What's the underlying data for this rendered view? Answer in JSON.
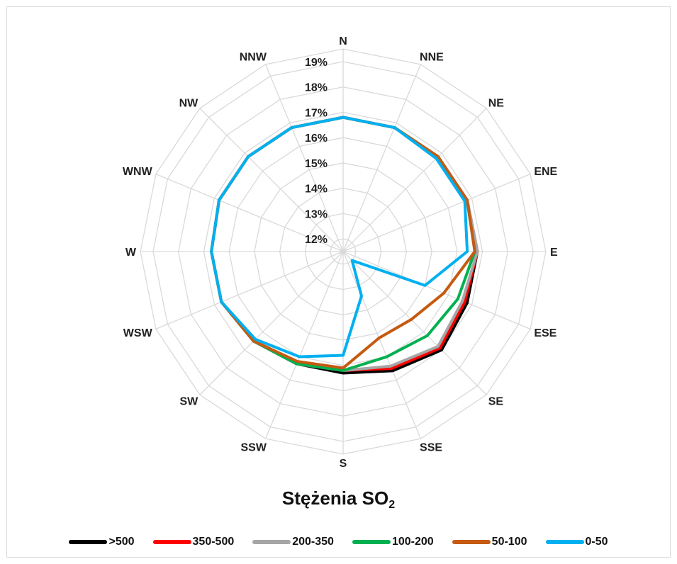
{
  "chart_data": {
    "type": "radar",
    "title": "Stężenia SO",
    "title_subscript": "2",
    "directions": [
      "N",
      "NNE",
      "NE",
      "ENE",
      "E",
      "ESE",
      "SE",
      "SSE",
      "S",
      "SSW",
      "SW",
      "WSW",
      "W",
      "WNW",
      "NW",
      "NNW"
    ],
    "radial_ticks": [
      "12%",
      "13%",
      "14%",
      "15%",
      "16%",
      "17%",
      "18%",
      "19%"
    ],
    "rlim": [
      0.115,
      0.19
    ],
    "grid": true,
    "legend_position": "bottom",
    "series": [
      {
        "name": ">500",
        "color": "#000000",
        "values": [
          0.168,
          0.168,
          0.168,
          0.168,
          0.168,
          0.168,
          0.17,
          0.166,
          0.163,
          0.163,
          0.165,
          0.167,
          0.167,
          0.168,
          0.168,
          0.168
        ]
      },
      {
        "name": "350-500",
        "color": "#ff0000",
        "values": [
          0.168,
          0.168,
          0.168,
          0.168,
          0.168,
          0.167,
          0.169,
          0.165,
          0.162,
          0.163,
          0.165,
          0.167,
          0.167,
          0.168,
          0.168,
          0.168
        ]
      },
      {
        "name": "200-350",
        "color": "#a6a6a6",
        "values": [
          0.168,
          0.168,
          0.168,
          0.168,
          0.168,
          0.166,
          0.168,
          0.164,
          0.162,
          0.163,
          0.165,
          0.167,
          0.167,
          0.168,
          0.168,
          0.168
        ]
      },
      {
        "name": "100-200",
        "color": "#00b050",
        "values": [
          0.168,
          0.168,
          0.168,
          0.168,
          0.167,
          0.164,
          0.162,
          0.16,
          0.162,
          0.163,
          0.165,
          0.167,
          0.167,
          0.168,
          0.168,
          0.168
        ]
      },
      {
        "name": "50-100",
        "color": "#c55a11",
        "values": [
          0.168,
          0.168,
          0.168,
          0.168,
          0.167,
          0.158,
          0.153,
          0.152,
          0.161,
          0.162,
          0.165,
          0.167,
          0.167,
          0.168,
          0.168,
          0.168
        ]
      },
      {
        "name": "0-50",
        "color": "#00b0f0",
        "values": [
          0.168,
          0.168,
          0.167,
          0.167,
          0.164,
          0.15,
          0.12,
          0.134,
          0.156,
          0.16,
          0.164,
          0.167,
          0.167,
          0.168,
          0.168,
          0.168
        ]
      }
    ]
  }
}
